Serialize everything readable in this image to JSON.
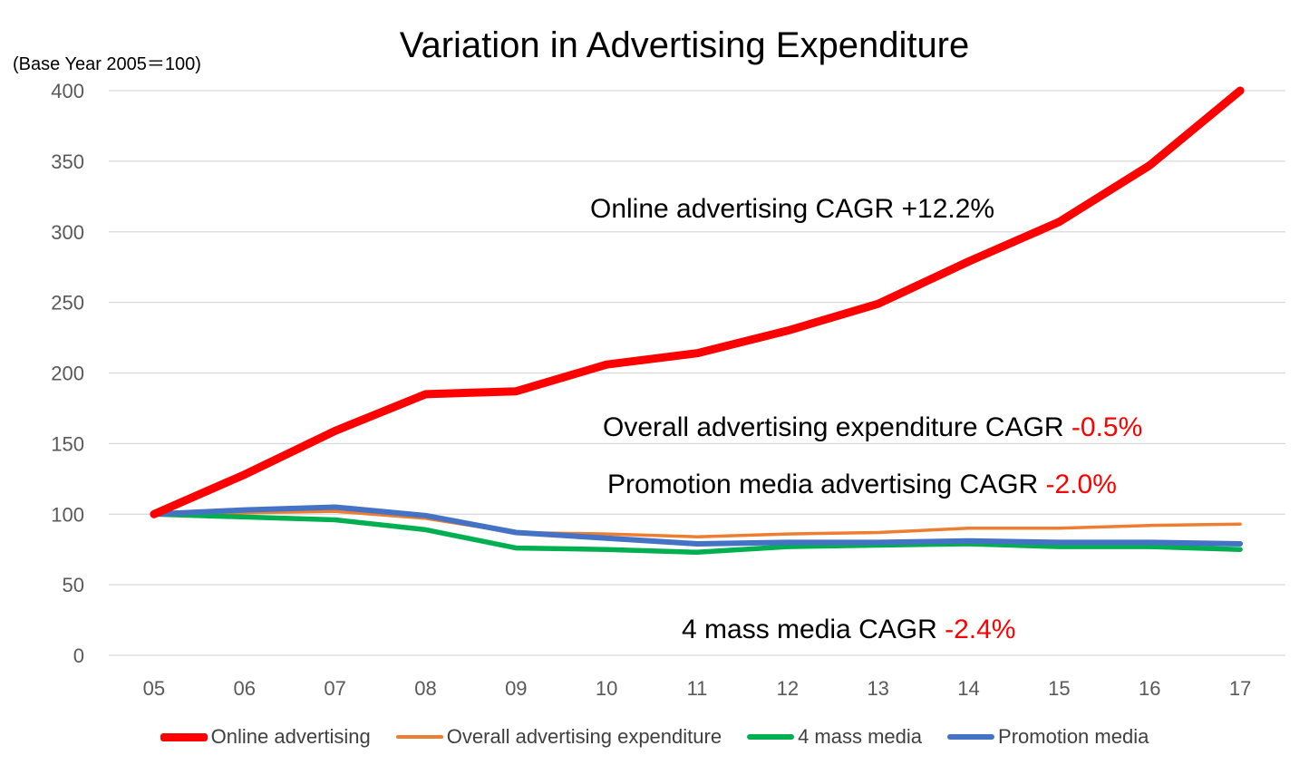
{
  "chart_data": {
    "type": "line",
    "title": "Variation in Advertising Expenditure",
    "yaxis_note": "(Base Year 2005＝100)",
    "categories": [
      "05",
      "06",
      "07",
      "08",
      "09",
      "10",
      "11",
      "12",
      "13",
      "14",
      "15",
      "16",
      "17"
    ],
    "ylim": [
      0,
      400
    ],
    "yticks": [
      0,
      50,
      100,
      150,
      200,
      250,
      300,
      350,
      400
    ],
    "grid": "horizontal",
    "legend_position": "bottom",
    "series": [
      {
        "name": "Online advertising",
        "color": "#ff0000",
        "values": [
          100,
          128,
          159,
          185,
          187,
          206,
          214,
          230,
          249,
          279,
          307,
          347,
          400
        ]
      },
      {
        "name": "Overall advertising expenditure",
        "color": "#ed7d31",
        "values": [
          100,
          101,
          102,
          97,
          87,
          86,
          84,
          86,
          87,
          90,
          90,
          92,
          93
        ]
      },
      {
        "name": "4 mass media",
        "color": "#00b050",
        "values": [
          100,
          98,
          96,
          89,
          76,
          75,
          73,
          77,
          78,
          79,
          77,
          77,
          75
        ]
      },
      {
        "name": "Promotion media",
        "color": "#4472c4",
        "values": [
          100,
          103,
          105,
          99,
          87,
          83,
          79,
          80,
          80,
          81,
          80,
          80,
          79
        ]
      }
    ],
    "annotations": {
      "online": {
        "label": "Online advertising  CAGR ",
        "value": "+12.2%"
      },
      "overall": {
        "label": "Overall advertising expenditure  CAGR ",
        "value": "-0.5%"
      },
      "promotion": {
        "label": "Promotion media advertising   CAGR ",
        "value": "-2.0%"
      },
      "mass": {
        "label": "4 mass media    CAGR ",
        "value": "-2.4%"
      }
    }
  }
}
